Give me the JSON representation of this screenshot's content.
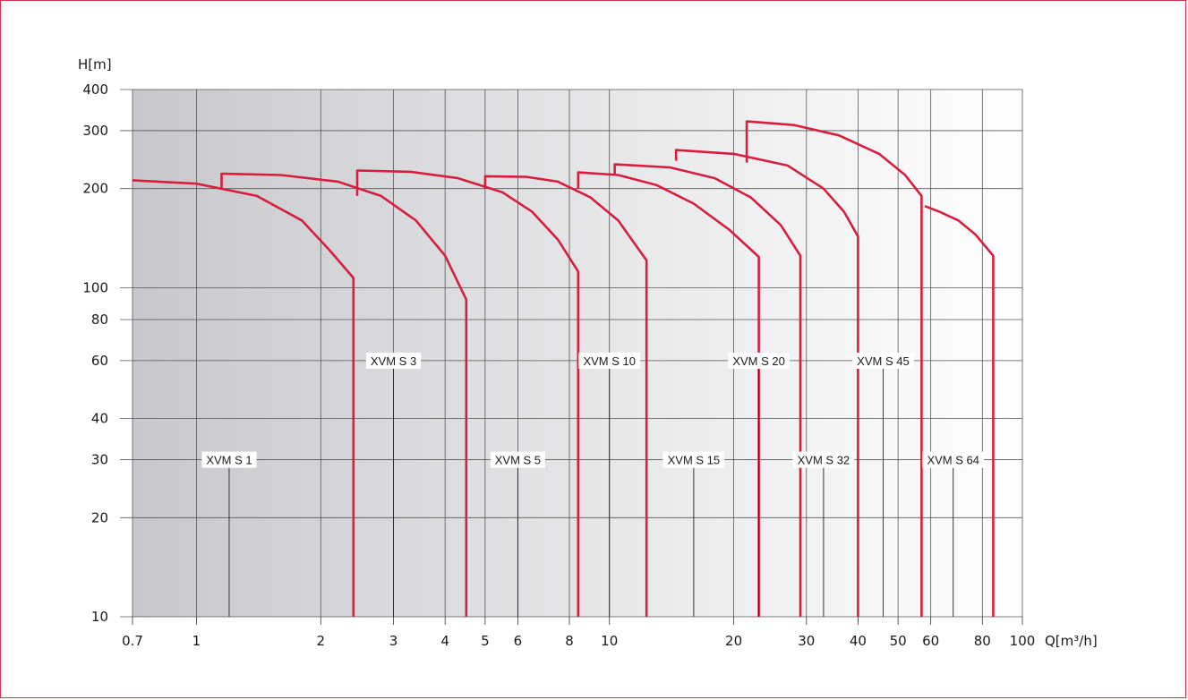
{
  "chart_data": {
    "type": "line",
    "ylabel": "H[m]",
    "xlabel": "Q[m³/h]",
    "x_scale": "log",
    "y_scale": "log",
    "xlim": [
      0.7,
      100
    ],
    "ylim": [
      10,
      400
    ],
    "grid": true,
    "x_ticks": [
      0.7,
      1,
      2,
      3,
      4,
      5,
      6,
      8,
      10,
      20,
      30,
      40,
      50,
      60,
      80,
      100
    ],
    "x_tick_labels": [
      "0.7",
      "1",
      "2",
      "3",
      "4",
      "5",
      "6",
      "8",
      "10",
      "20",
      "30",
      "40",
      "50",
      "60",
      "80",
      "100"
    ],
    "y_ticks": [
      10,
      20,
      30,
      40,
      60,
      80,
      100,
      200,
      300,
      400
    ],
    "y_tick_labels": [
      "10",
      "20",
      "30",
      "40",
      "60",
      "80",
      "100",
      "200",
      "300",
      "400"
    ],
    "curve_color": "#d81e3f",
    "series": [
      {
        "name": "XVM S 1",
        "label_at": [
          1.2,
          30
        ],
        "points": [
          [
            0.7,
            212
          ],
          [
            1,
            207
          ],
          [
            1.4,
            190
          ],
          [
            1.8,
            160
          ],
          [
            2.1,
            130
          ],
          [
            2.4,
            107
          ],
          [
            2.4,
            10
          ]
        ]
      },
      {
        "name": "XVM S 3",
        "label_at": [
          3.0,
          60
        ],
        "points": [
          [
            1.15,
            201
          ],
          [
            1.15,
            222
          ],
          [
            1.6,
            220
          ],
          [
            2.2,
            210
          ],
          [
            2.8,
            190
          ],
          [
            3.4,
            160
          ],
          [
            4.0,
            125
          ],
          [
            4.5,
            92
          ],
          [
            4.5,
            10
          ]
        ]
      },
      {
        "name": "XVM S 5",
        "label_at": [
          6.0,
          30
        ],
        "points": [
          [
            2.45,
            190
          ],
          [
            2.45,
            227
          ],
          [
            3.3,
            225
          ],
          [
            4.3,
            215
          ],
          [
            5.5,
            195
          ],
          [
            6.5,
            170
          ],
          [
            7.5,
            140
          ],
          [
            8.4,
            112
          ],
          [
            8.4,
            10
          ]
        ]
      },
      {
        "name": "XVM S 10",
        "label_at": [
          10.0,
          60
        ],
        "points": [
          [
            5.0,
            200
          ],
          [
            5.0,
            218
          ],
          [
            6.3,
            217
          ],
          [
            7.5,
            210
          ],
          [
            9.0,
            188
          ],
          [
            10.5,
            160
          ],
          [
            12.3,
            121
          ],
          [
            12.3,
            10
          ]
        ]
      },
      {
        "name": "XVM S 15",
        "label_at": [
          16.0,
          30
        ],
        "points": [
          [
            8.4,
            200
          ],
          [
            8.4,
            224
          ],
          [
            10.5,
            220
          ],
          [
            13,
            205
          ],
          [
            16,
            180
          ],
          [
            19.5,
            150
          ],
          [
            23,
            124
          ],
          [
            23,
            10
          ]
        ]
      },
      {
        "name": "XVM S 20",
        "label_at": [
          23.0,
          60
        ],
        "points": [
          [
            10.3,
            222
          ],
          [
            10.3,
            237
          ],
          [
            14,
            232
          ],
          [
            18,
            215
          ],
          [
            22,
            188
          ],
          [
            26,
            155
          ],
          [
            29,
            125
          ],
          [
            29,
            10
          ]
        ]
      },
      {
        "name": "XVM S 32",
        "label_at": [
          33.0,
          30
        ],
        "points": [
          [
            14.5,
            243
          ],
          [
            14.5,
            262
          ],
          [
            20,
            255
          ],
          [
            27,
            235
          ],
          [
            33,
            200
          ],
          [
            37,
            170
          ],
          [
            40,
            143
          ],
          [
            40,
            10
          ]
        ]
      },
      {
        "name": "XVM S 45",
        "label_at": [
          46.0,
          60
        ],
        "points": [
          [
            21.5,
            240
          ],
          [
            21.5,
            320
          ],
          [
            28,
            312
          ],
          [
            36,
            290
          ],
          [
            45,
            255
          ],
          [
            52,
            220
          ],
          [
            57,
            190
          ],
          [
            57,
            10
          ]
        ]
      },
      {
        "name": "XVM S 64",
        "label_at": [
          68.0,
          30
        ],
        "points": [
          [
            58,
            177
          ],
          [
            63,
            170
          ],
          [
            70,
            160
          ],
          [
            77,
            145
          ],
          [
            85,
            125
          ],
          [
            85,
            10
          ]
        ]
      }
    ]
  }
}
